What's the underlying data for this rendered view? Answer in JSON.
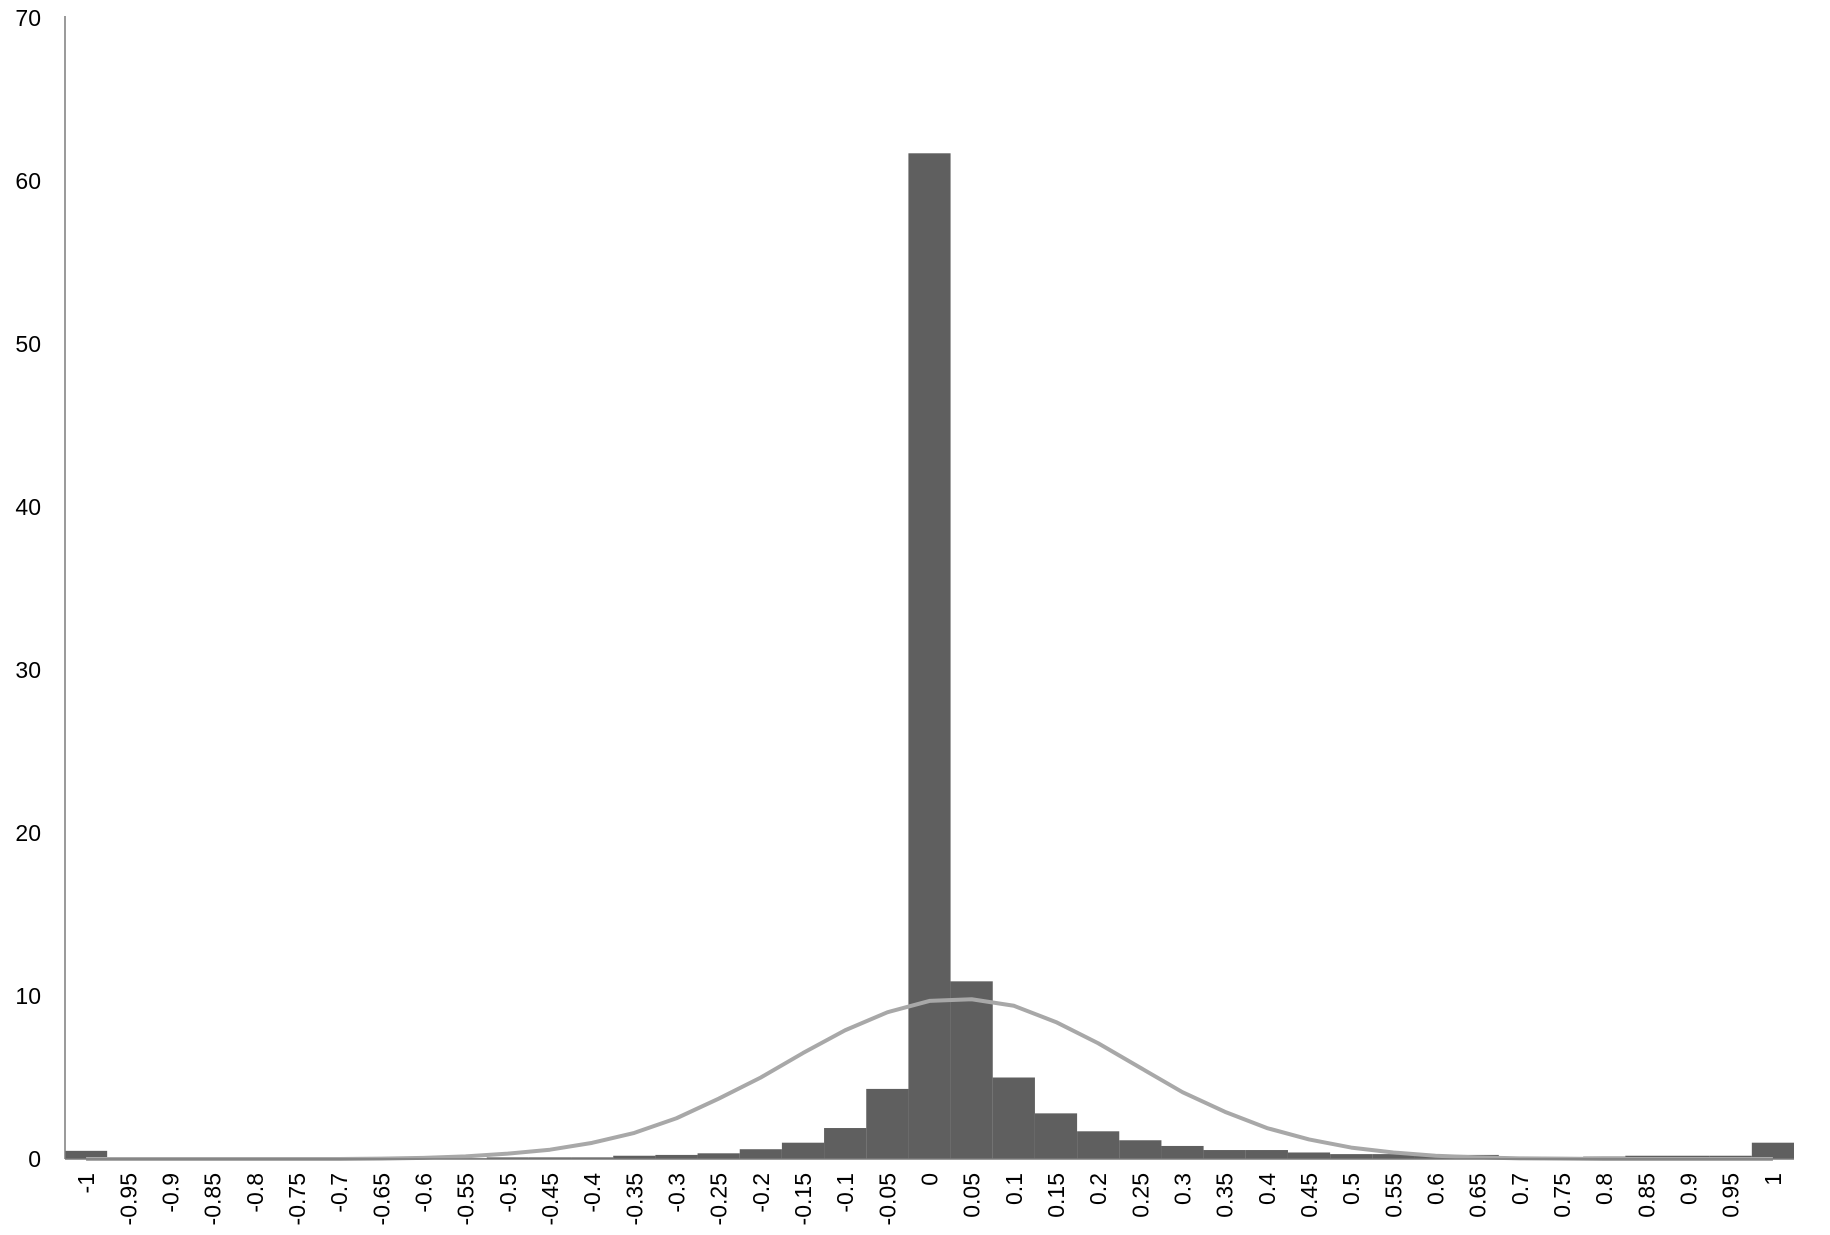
{
  "chart_data": {
    "type": "bar",
    "title": "",
    "xlabel": "",
    "ylabel": "",
    "ylim": [
      0,
      70
    ],
    "yticks": [
      "0",
      "10",
      "20",
      "30",
      "40",
      "50",
      "60",
      "70"
    ],
    "categories": [
      "-1",
      "-0.95",
      "-0.9",
      "-0.85",
      "-0.8",
      "-0.75",
      "-0.7",
      "-0.65",
      "-0.6",
      "-0.55",
      "-0.5",
      "-0.45",
      "-0.4",
      "-0.35",
      "-0.3",
      "-0.25",
      "-0.2",
      "-0.15",
      "-0.1",
      "-0.05",
      "0",
      "0.05",
      "0.1",
      "0.15",
      "0.2",
      "0.25",
      "0.3",
      "0.35",
      "0.4",
      "0.45",
      "0.5",
      "0.55",
      "0.6",
      "0.65",
      "0.7",
      "0.75",
      "0.8",
      "0.85",
      "0.9",
      "0.95",
      "1"
    ],
    "series": [
      {
        "kind": "bar",
        "color": "#5f5f5f",
        "values": [
          0.5,
          0.05,
          0.05,
          0.05,
          0.05,
          0.05,
          0.05,
          0.05,
          0.05,
          0.05,
          0.1,
          0.1,
          0.1,
          0.2,
          0.25,
          0.35,
          0.6,
          1.0,
          1.9,
          4.3,
          61.7,
          10.9,
          5.0,
          2.8,
          1.7,
          1.15,
          0.8,
          0.55,
          0.55,
          0.4,
          0.3,
          0.3,
          0.2,
          0.25,
          0.15,
          0.1,
          0.15,
          0.2,
          0.2,
          0.2,
          1.0
        ]
      },
      {
        "kind": "line",
        "color": "#a8a8a8",
        "values": [
          0.0,
          0.0,
          0.0,
          0.0,
          0.0,
          0.0,
          0.0,
          0.02,
          0.07,
          0.16,
          0.33,
          0.57,
          0.99,
          1.6,
          2.5,
          3.7,
          5.0,
          6.5,
          7.9,
          9.0,
          9.7,
          9.8,
          9.4,
          8.4,
          7.1,
          5.6,
          4.1,
          2.9,
          1.9,
          1.2,
          0.7,
          0.4,
          0.2,
          0.1,
          0.04,
          0.02,
          0.0,
          0.0,
          0.0,
          0.0,
          0.0
        ]
      }
    ]
  }
}
